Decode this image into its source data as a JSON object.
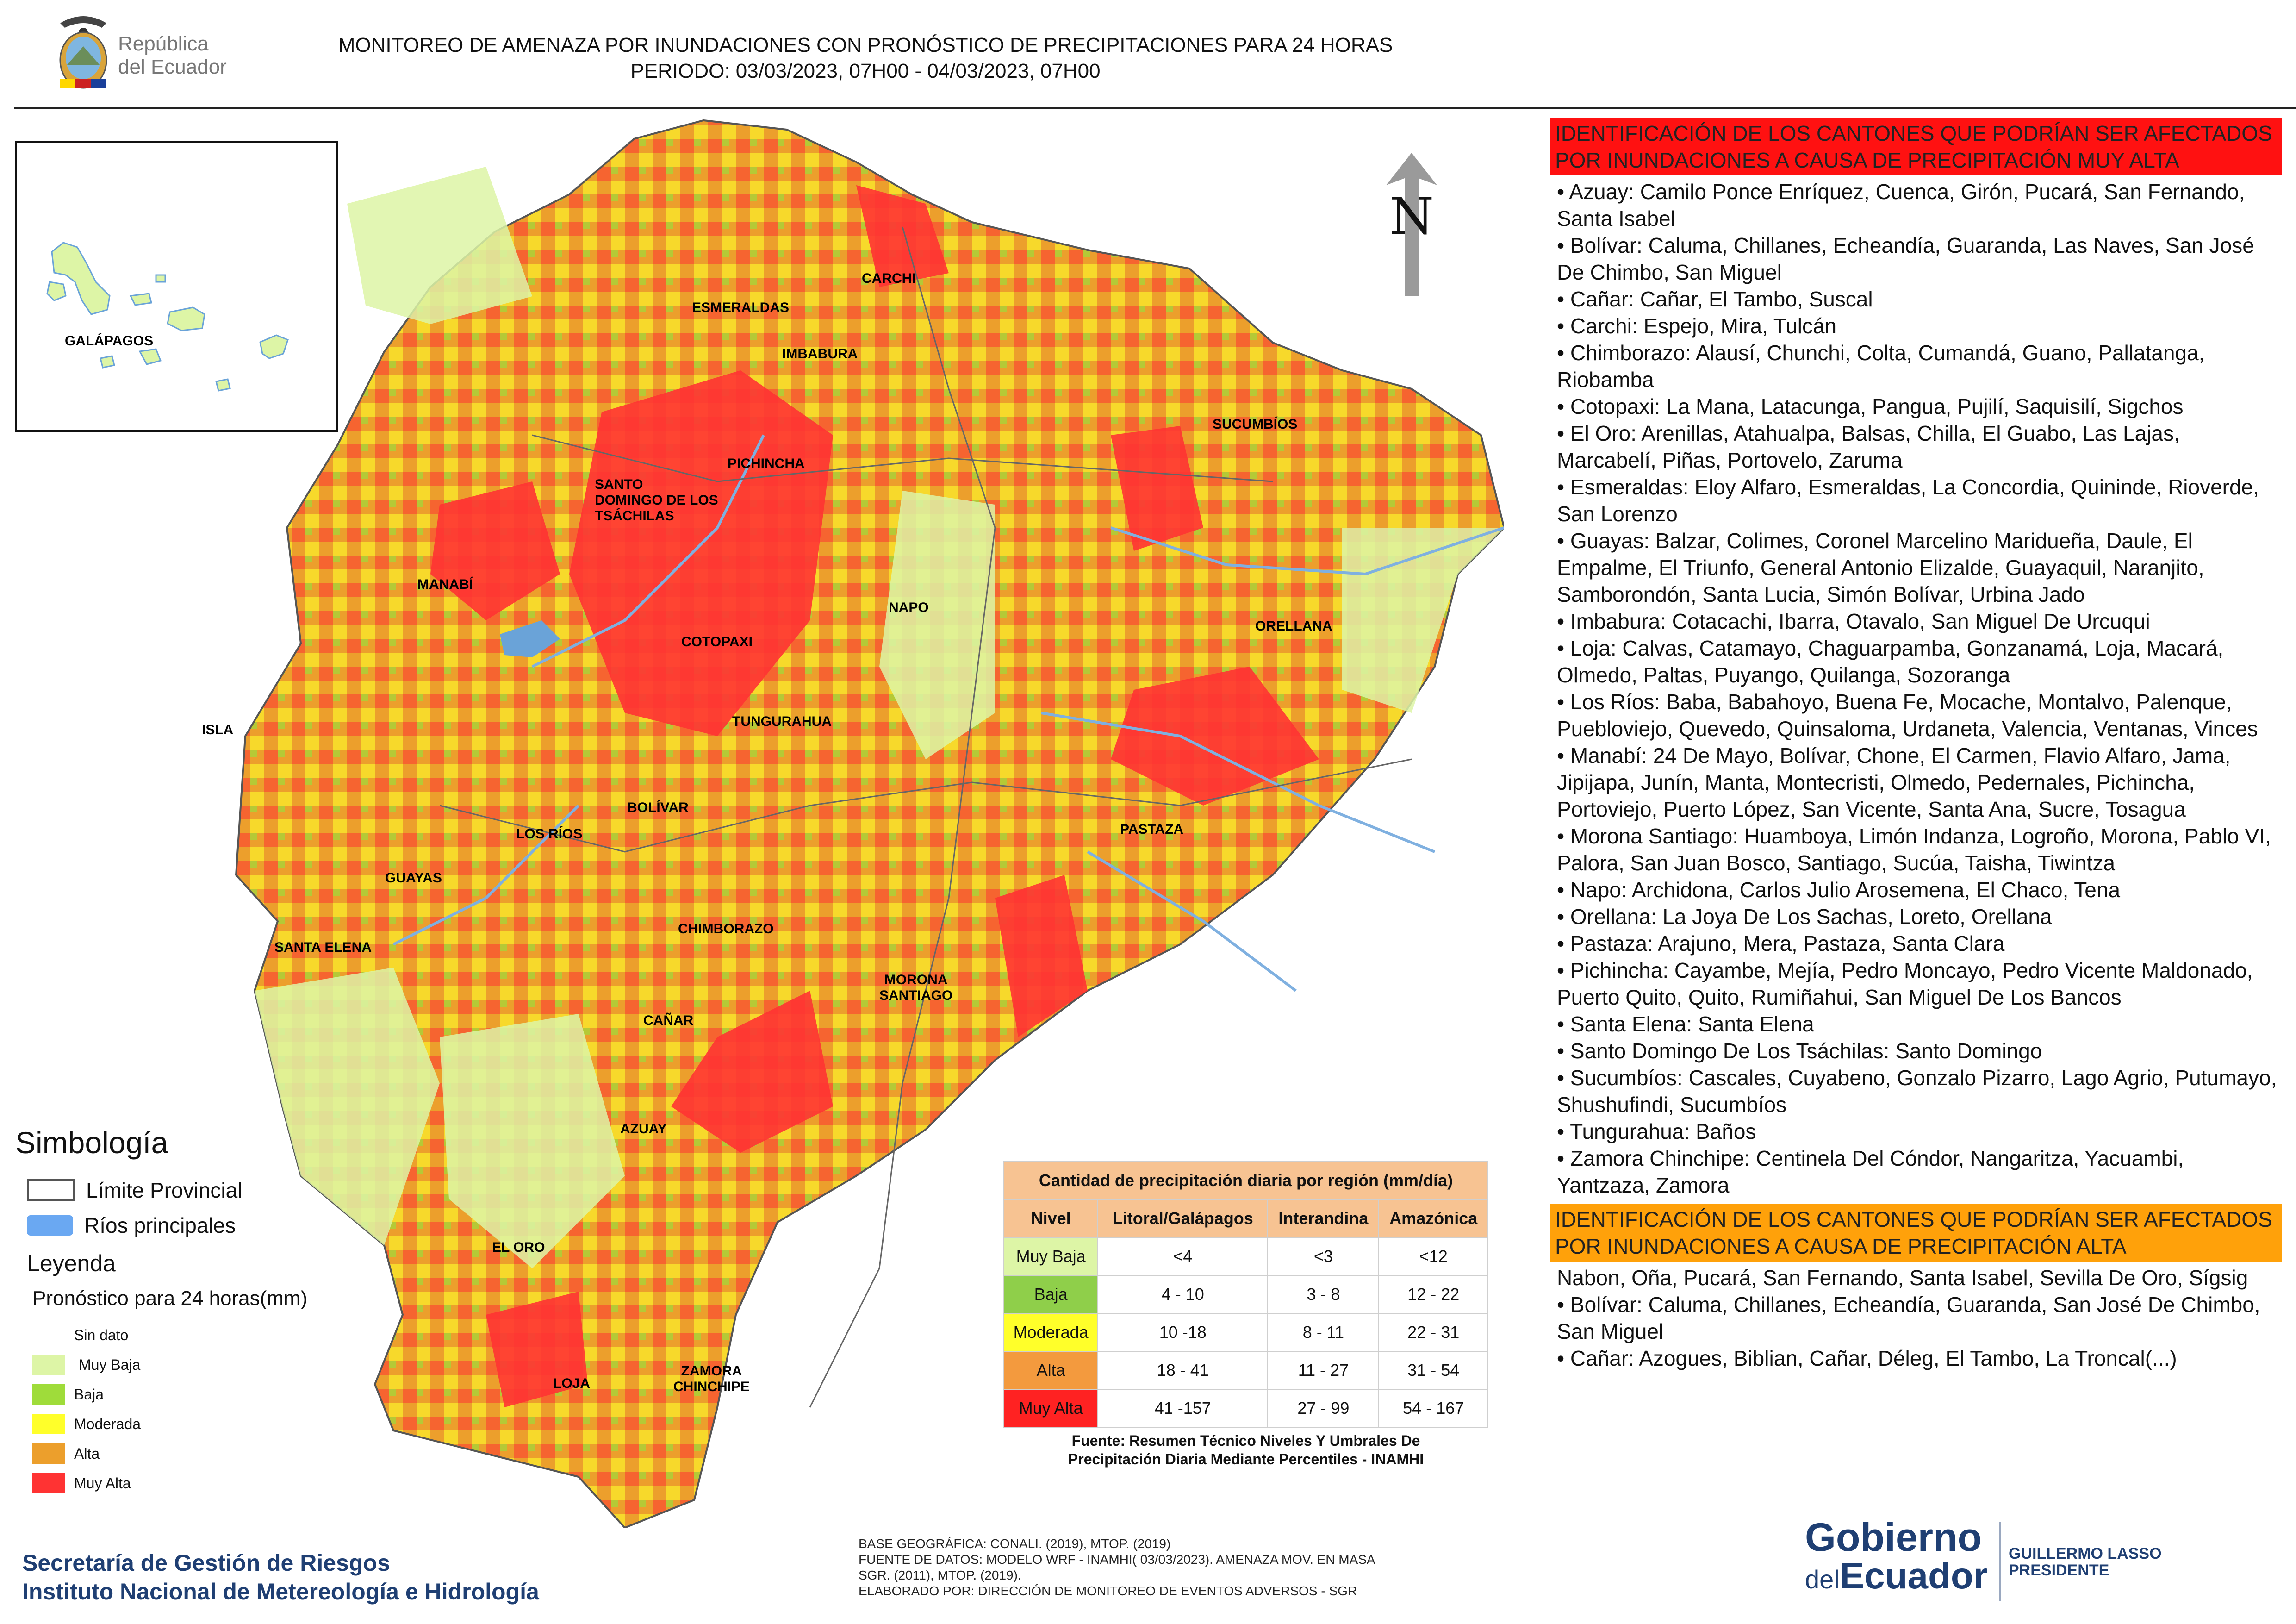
{
  "header": {
    "logo_text_line1": "República",
    "logo_text_line2": "del Ecuador",
    "title": "MONITOREO DE AMENAZA POR INUNDACIONES  CON PRONÓSTICO DE  PRECIPITACIONES PARA 24 HORAS",
    "period": "PERIODO: 03/03/2023, 07H00 - 04/03/2023, 07H00"
  },
  "inset": {
    "label": "GALÁPAGOS"
  },
  "map": {
    "north_label": "N",
    "province_labels": [
      "CARCHI",
      "ESMERALDAS",
      "IMBABURA",
      "SUCUMBÍOS",
      "PICHINCHA",
      "SANTO\nDOMINGO DE LOS\nTSÁCHILAS",
      "MANABÍ",
      "NAPO",
      "ORELLANA",
      "COTOPAXI",
      "ISLA",
      "TUNGURAHUA",
      "BOLÍVAR",
      "PASTAZA",
      "LOS RÍOS",
      "GUAYAS",
      "SANTA ELENA",
      "CHIMBORAZO",
      "MORONA\nSANTIAGO",
      "CAÑAR",
      "AZUAY",
      "EL ORO",
      "ZAMORA\nCHINCHIPE",
      "LOJA"
    ]
  },
  "legend": {
    "simbologia_title": "Simbología",
    "limite_provincial": "Límite Provincial",
    "rios_principales": "Ríos principales",
    "leyenda_title": "Leyenda",
    "pronostico_label": "Pronóstico para 24 horas(mm)",
    "items": [
      {
        "label": "Sin dato",
        "color": "#ffffff"
      },
      {
        "label": "Muy Baja",
        "color": "#ddf5a6"
      },
      {
        "label": "Baja",
        "color": "#9fdc3a"
      },
      {
        "label": "Moderada",
        "color": "#ffff2a"
      },
      {
        "label": "Alta",
        "color": "#ec9f2c"
      },
      {
        "label": "Muy Alta",
        "color": "#ff3333"
      }
    ]
  },
  "precip_table": {
    "title": "Cantidad de precipitación diaria por región (mm/día)",
    "headers": [
      "Nivel",
      "Litoral/Galápagos",
      "Interandina",
      "Amazónica"
    ],
    "rows": [
      {
        "nivel": "Muy Baja",
        "color": "#ddf5a6",
        "litoral": "<4",
        "interandina": "<3",
        "amazonica": "<12"
      },
      {
        "nivel": "Baja",
        "color": "#8fcf4a",
        "litoral": "4 - 10",
        "interandina": "3 - 8",
        "amazonica": "12 - 22"
      },
      {
        "nivel": "Moderada",
        "color": "#ffff2a",
        "litoral": "10 -18",
        "interandina": "8 - 11",
        "amazonica": "22 - 31"
      },
      {
        "nivel": "Alta",
        "color": "#f39a3e",
        "litoral": "18 - 41",
        "interandina": "11 - 27",
        "amazonica": "31 - 54"
      },
      {
        "nivel": "Muy Alta",
        "color": "#ff2222",
        "litoral": "41 -157",
        "interandina": "27 - 99",
        "amazonica": "54 - 167"
      }
    ],
    "source_line1": "Fuente: Resumen Técnico Niveles Y Umbrales De",
    "source_line2": "Precipitación Diaria Mediante Percentiles - INAMHI"
  },
  "footer": {
    "org_line1": "Secretaría de Gestión de Riesgos",
    "org_line2": "Instituto Nacional de Metereología e Hidrología",
    "credit_line1": "BASE GEOGRÁFICA: CONALI. (2019), MTOP. (2019)",
    "credit_line2": "FUENTE DE DATOS: MODELO WRF - INAMHI( 03/03/2023).  AMENAZA MOV. EN MASA",
    "credit_line3": "SGR. (2011), MTOP. (2019).",
    "credit_line4": "ELABORADO POR: DIRECCIÓN DE MONITOREO DE EVENTOS ADVERSOS - SGR",
    "gov_line1": "Gobierno",
    "gov_line2_a": "del",
    "gov_line2_b": "Ecuador",
    "president_name": "GUILLERMO LASSO",
    "president_title": "PRESIDENTE"
  },
  "panel": {
    "muy_alta_title": "IDENTIFICACIÓN DE LOS CANTONES QUE PODRÍAN SER AFECTADOS POR INUNDACIONES  A CAUSA DE PRECIPITACIÓN MUY ALTA",
    "muy_alta_items": [
      "Azuay: Camilo Ponce Enríquez, Cuenca, Girón, Pucará, San Fernando, Santa Isabel",
      "Bolívar: Caluma, Chillanes, Echeandía, Guaranda, Las Naves, San José De Chimbo, San Miguel",
      "Cañar: Cañar, El Tambo, Suscal",
      "Carchi: Espejo, Mira, Tulcán",
      "Chimborazo: Alausí, Chunchi, Colta, Cumandá, Guano, Pallatanga, Riobamba",
      "Cotopaxi: La Mana, Latacunga, Pangua, Pujilí, Saquisilí, Sigchos",
      "El Oro: Arenillas, Atahualpa, Balsas, Chilla, El Guabo, Las Lajas, Marcabelí, Piñas, Portovelo, Zaruma",
      "Esmeraldas: Eloy Alfaro, Esmeraldas, La Concordia, Quininde, Rioverde, San Lorenzo",
      "Guayas: Balzar, Colimes, Coronel Marcelino Maridueña, Daule, El Empalme, El Triunfo, General Antonio Elizalde, Guayaquil, Naranjito, Samborondón, Santa Lucia, Simón Bolívar, Urbina Jado",
      "Imbabura: Cotacachi, Ibarra, Otavalo, San Miguel De Urcuqui",
      "Loja: Calvas, Catamayo, Chaguarpamba, Gonzanamá, Loja, Macará, Olmedo, Paltas, Puyango, Quilanga, Sozoranga",
      "Los Ríos: Baba, Babahoyo, Buena Fe, Mocache, Montalvo, Palenque, Puebloviejo, Quevedo, Quinsaloma, Urdaneta, Valencia, Ventanas, Vinces",
      "Manabí: 24 De Mayo, Bolívar, Chone, El Carmen, Flavio Alfaro, Jama, Jipijapa, Junín, Manta, Montecristi, Olmedo, Pedernales, Pichincha, Portoviejo, Puerto López, San Vicente, Santa Ana, Sucre, Tosagua",
      "Morona Santiago: Huamboya, Limón Indanza, Logroño, Morona, Pablo VI, Palora, San Juan Bosco, Santiago, Sucúa, Taisha, Tiwintza",
      "Napo: Archidona, Carlos Julio Arosemena, El Chaco, Tena",
      "Orellana: La Joya De Los Sachas, Loreto, Orellana",
      "Pastaza: Arajuno, Mera, Pastaza, Santa Clara",
      "Pichincha: Cayambe, Mejía, Pedro Moncayo, Pedro Vicente Maldonado, Puerto Quito, Quito, Rumiñahui, San Miguel De Los Bancos",
      "Santa Elena: Santa Elena",
      "Santo Domingo De Los Tsáchilas: Santo Domingo",
      "Sucumbíos: Cascales, Cuyabeno, Gonzalo Pizarro, Lago Agrio, Putumayo, Shushufindi, Sucumbíos",
      "Tungurahua: Baños",
      "Zamora Chinchipe: Centinela Del Cóndor, Nangaritza, Yacuambi, Yantzaza, Zamora"
    ],
    "alta_title": "IDENTIFICACIÓN DE LOS CANTONES QUE  PODRÍAN SER AFECTADOS POR INUNDACIONES  A CAUSA DE PRECIPITACIÓN ALTA",
    "alta_lead": "Nabon, Oña, Pucará, San Fernando, Santa Isabel, Sevilla De Oro, Sígsig",
    "alta_items": [
      "Bolívar: Caluma, Chillanes, Echeandía, Guaranda, San José De Chimbo, San Miguel",
      "Cañar: Azogues, Biblian, Cañar, Déleg, El Tambo, La Troncal(...)"
    ]
  }
}
